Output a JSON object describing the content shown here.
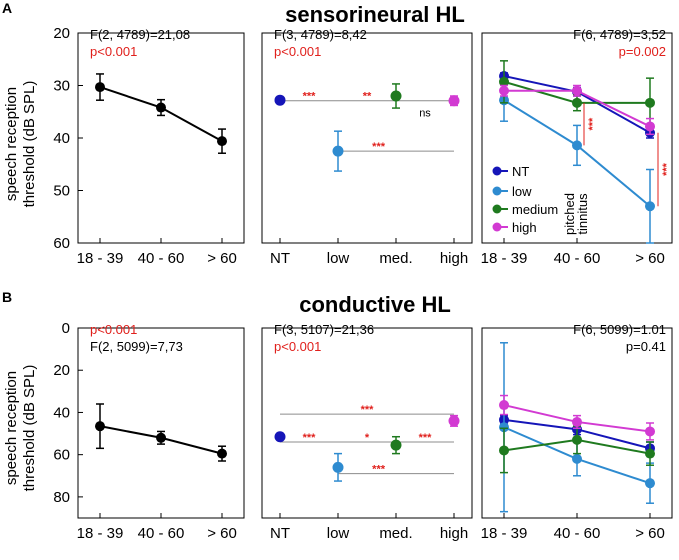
{
  "figure": {
    "rows": [
      {
        "letter": "A",
        "title": "sensorineural HL"
      },
      {
        "letter": "B",
        "title": "conductive HL"
      }
    ],
    "ylabel_line1": "speech reception",
    "ylabel_line2": "threshold (dB SPL)",
    "tinnitus_note_1": "pitched",
    "tinnitus_note_2": "tinnitus",
    "legend": {
      "items": [
        {
          "name": "NT",
          "color": "#1515b8"
        },
        {
          "name": "low",
          "color": "#2e8bd0"
        },
        {
          "name": "medium",
          "color": "#1f7a1f"
        },
        {
          "name": "high",
          "color": "#d23ad2"
        }
      ]
    },
    "colors": {
      "black": "#000000",
      "red": "#e0201c",
      "grid": "#8c8c8c"
    }
  },
  "chart_data": [
    {
      "id": "A-age",
      "type": "line",
      "row": 0,
      "col": 0,
      "stats": [
        "F(2, 4789)=21,08",
        "p<0.001"
      ],
      "stat_colors": [
        "#000000",
        "#e0201c"
      ],
      "categories": [
        "18 - 39",
        "40 - 60",
        "> 60"
      ],
      "ylim": [
        20,
        60
      ],
      "yticks": [
        20,
        30,
        40,
        50,
        60
      ],
      "series": [
        {
          "name": "all",
          "color": "#000000",
          "values": [
            30.3,
            34.2,
            40.6
          ],
          "err": [
            2.5,
            1.5,
            2.3
          ]
        }
      ]
    },
    {
      "id": "A-tinnitus",
      "type": "scatter",
      "row": 0,
      "col": 1,
      "stats": [
        "F(3, 4789)=8,42",
        "p<0.001"
      ],
      "stat_colors": [
        "#000000",
        "#e0201c"
      ],
      "categories": [
        "NT",
        "low",
        "med.",
        "high"
      ],
      "ylim": [
        20,
        60
      ],
      "points": [
        {
          "name": "NT",
          "color": "#1515b8",
          "value": 32.8,
          "err": 0.4
        },
        {
          "name": "low",
          "color": "#2e8bd0",
          "value": 42.5,
          "err": 3.8
        },
        {
          "name": "med.",
          "color": "#1f7a1f",
          "value": 32.0,
          "err": 2.3
        },
        {
          "name": "high",
          "color": "#d23ad2",
          "value": 32.9,
          "err": 0.9
        }
      ],
      "comparisons": [
        {
          "from": 0,
          "to": 1,
          "y": 32.9,
          "label": "***",
          "color": "#e0201c",
          "labelAt": 0.5
        },
        {
          "from": 1,
          "to": 2,
          "y": 32.9,
          "label": "**",
          "color": "#e0201c",
          "labelAt": 0.5
        },
        {
          "from": 2,
          "to": 3,
          "y": 32.9,
          "label": "ns",
          "color": "#000000",
          "labelAt": 0.5,
          "labelDy": 5
        },
        {
          "from": 1,
          "to": 3,
          "y": 42.5,
          "label": "***",
          "color": "#e0201c",
          "labelAt": 0.35
        }
      ]
    },
    {
      "id": "A-interaction",
      "type": "line",
      "row": 0,
      "col": 2,
      "stats": [
        "F(6, 4789)=3,52",
        "p=0.002"
      ],
      "stat_colors": [
        "#000000",
        "#e0201c"
      ],
      "categories": [
        "18 - 39",
        "40 - 60",
        "> 60"
      ],
      "ylim": [
        20,
        60
      ],
      "series": [
        {
          "name": "NT",
          "color": "#1515b8",
          "values": [
            28.2,
            31.2,
            39.0
          ],
          "err": [
            0.6,
            0.8,
            1.0
          ]
        },
        {
          "name": "low",
          "color": "#2e8bd0",
          "values": [
            32.8,
            41.4,
            53.0
          ],
          "err": [
            4.0,
            3.8,
            7.0
          ]
        },
        {
          "name": "medium",
          "color": "#1f7a1f",
          "values": [
            29.3,
            33.3,
            33.3
          ],
          "err": [
            4.0,
            1.5,
            4.7
          ]
        },
        {
          "name": "high",
          "color": "#d23ad2",
          "values": [
            31.0,
            31.0,
            37.8
          ],
          "err": [
            1.0,
            1.0,
            1.5
          ]
        }
      ],
      "annotations": [
        {
          "label": "***",
          "color": "#e0201c"
        },
        {
          "label": "***",
          "color": "#e0201c"
        }
      ]
    },
    {
      "id": "B-age",
      "type": "line",
      "row": 1,
      "col": 0,
      "stats": [
        "p<0.001",
        "F(2, 5099)=7,73"
      ],
      "stat_colors": [
        "#e0201c",
        "#000000"
      ],
      "categories": [
        "18 - 39",
        "40 - 60",
        "> 60"
      ],
      "ylim": [
        0,
        90
      ],
      "yticks": [
        0,
        20,
        40,
        60,
        80
      ],
      "series": [
        {
          "name": "all",
          "color": "#000000",
          "values": [
            46.5,
            52.0,
            59.5
          ],
          "err": [
            10.5,
            3.0,
            3.5
          ]
        }
      ]
    },
    {
      "id": "B-tinnitus",
      "type": "scatter",
      "row": 1,
      "col": 1,
      "stats": [
        "F(3, 5107)=21,36",
        "p<0.001"
      ],
      "stat_colors": [
        "#000000",
        "#e0201c"
      ],
      "categories": [
        "NT",
        "low",
        "med.",
        "high"
      ],
      "ylim": [
        0,
        90
      ],
      "points": [
        {
          "name": "NT",
          "color": "#1515b8",
          "value": 51.5,
          "err": 0.6
        },
        {
          "name": "low",
          "color": "#2e8bd0",
          "value": 66.0,
          "err": 6.5
        },
        {
          "name": "med.",
          "color": "#1f7a1f",
          "value": 55.5,
          "err": 4.0
        },
        {
          "name": "high",
          "color": "#d23ad2",
          "value": 44.0,
          "err": 2.5
        }
      ],
      "comparisons": [
        {
          "from": 0,
          "to": 3,
          "y": 40.8,
          "label": "***",
          "color": "#e0201c",
          "labelAt": 0.5
        },
        {
          "from": 0,
          "to": 1,
          "y": 54.0,
          "label": "***",
          "color": "#e0201c",
          "labelAt": 0.5
        },
        {
          "from": 1,
          "to": 2,
          "y": 54.0,
          "label": "*",
          "color": "#e0201c",
          "labelAt": 0.5
        },
        {
          "from": 2,
          "to": 3,
          "y": 54.0,
          "label": "***",
          "color": "#e0201c",
          "labelAt": 0.5
        },
        {
          "from": 1,
          "to": 3,
          "y": 69.0,
          "label": "***",
          "color": "#e0201c",
          "labelAt": 0.35
        }
      ]
    },
    {
      "id": "B-interaction",
      "type": "line",
      "row": 1,
      "col": 2,
      "stats": [
        "F(6, 5099)=1.01",
        "p=0.41"
      ],
      "stat_colors": [
        "#000000",
        "#000000"
      ],
      "categories": [
        "18 - 39",
        "40 - 60",
        "> 60"
      ],
      "ylim": [
        0,
        90
      ],
      "series": [
        {
          "name": "NT",
          "color": "#1515b8",
          "values": [
            43.5,
            48.0,
            57.0
          ],
          "err": [
            2.0,
            2.5,
            3.0
          ]
        },
        {
          "name": "low",
          "color": "#2e8bd0",
          "values": [
            47.0,
            62.0,
            73.5
          ],
          "err": [
            40.0,
            8.0,
            9.5
          ]
        },
        {
          "name": "medium",
          "color": "#1f7a1f",
          "values": [
            58.0,
            53.0,
            59.5
          ],
          "err": [
            10.5,
            6.5,
            5.5
          ]
        },
        {
          "name": "high",
          "color": "#d23ad2",
          "values": [
            36.5,
            44.5,
            49.0
          ],
          "err": [
            4.5,
            3.0,
            4.0
          ]
        }
      ]
    }
  ]
}
